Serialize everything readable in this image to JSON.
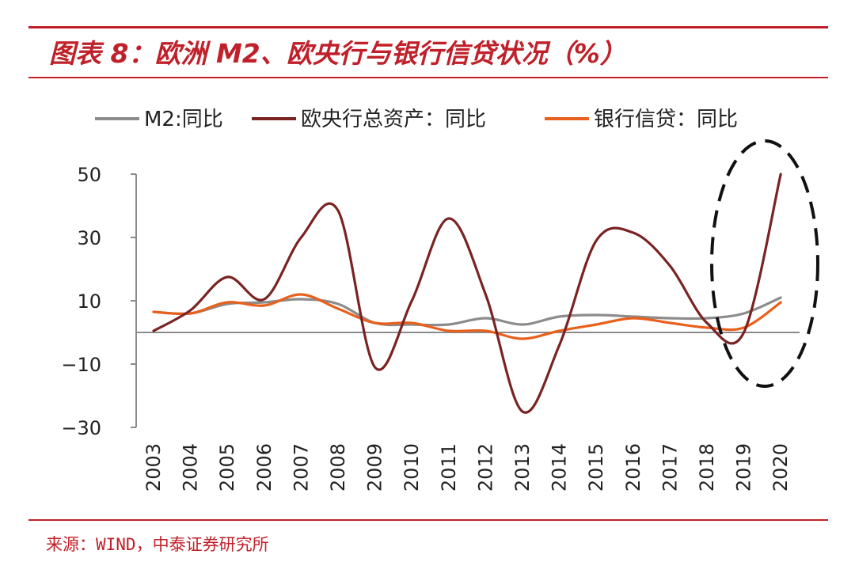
{
  "title": "图表 8：欧洲 M2、欧央行与银行信贷状况（%）",
  "source": "来源：WIND，中泰证券研究所",
  "chart_data": {
    "type": "line",
    "title": "图表 8：欧洲 M2、欧央行与银行信贷状况（%）",
    "x": [
      "2003",
      "2004",
      "2005",
      "2006",
      "2007",
      "2008",
      "2009",
      "2010",
      "2011",
      "2012",
      "2013",
      "2014",
      "2015",
      "2016",
      "2017",
      "2018",
      "2019",
      "2020"
    ],
    "yticks": [
      50,
      30,
      10,
      -10,
      -30
    ],
    "ylim": [
      -30,
      50
    ],
    "legend_position": "top",
    "grid": false,
    "series": [
      {
        "name": "M2:同比",
        "color": "#8c8c8c",
        "values": [
          6.5,
          6.0,
          9.0,
          9.5,
          10.5,
          9.0,
          3.0,
          2.5,
          2.5,
          4.5,
          2.5,
          5.0,
          5.5,
          5.0,
          4.5,
          4.5,
          6.0,
          11.0
        ]
      },
      {
        "name": "欧央行总资产：同比",
        "color": "#7a2323",
        "values": [
          0.5,
          7.0,
          17.5,
          10.5,
          30.0,
          38.5,
          -11.0,
          10.0,
          36.0,
          12.0,
          -25.0,
          -4.0,
          29.0,
          31.5,
          21.0,
          3.0,
          0.0,
          50.0
        ]
      },
      {
        "name": "银行信贷：同比",
        "color": "#e8601c",
        "values": [
          6.5,
          6.0,
          9.5,
          8.5,
          12.0,
          7.5,
          3.0,
          3.0,
          0.5,
          0.5,
          -2.0,
          0.5,
          2.5,
          4.5,
          3.0,
          1.5,
          1.5,
          9.5
        ]
      }
    ],
    "annotation": "dashed-ellipse-highlight-2019-2020"
  }
}
